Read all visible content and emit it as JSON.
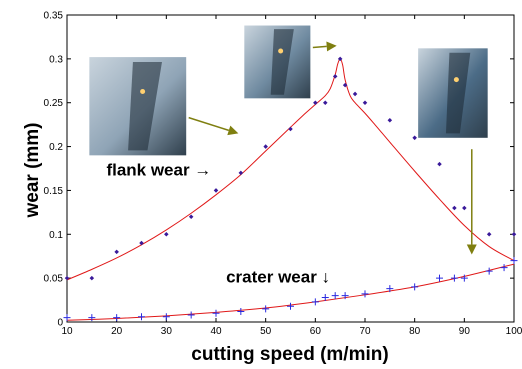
{
  "chart_data": {
    "type": "scatter",
    "xlabel": "cutting speed (m/min)",
    "ylabel": "wear (mm)",
    "xlim": [
      10,
      100
    ],
    "ylim": [
      0,
      0.35
    ],
    "xticks": [
      10,
      20,
      30,
      40,
      50,
      60,
      70,
      80,
      90,
      100
    ],
    "yticks": [
      0,
      0.05,
      0.1,
      0.15,
      0.2,
      0.25,
      0.3,
      0.35
    ],
    "xtick_labels": [
      "10",
      "20",
      "30",
      "40",
      "50",
      "60",
      "70",
      "80",
      "90",
      "100"
    ],
    "ytick_labels": [
      "0",
      "0.05",
      "0.1",
      "0.15",
      "0.2",
      "0.25",
      "0.3",
      "0.35"
    ],
    "grid": false,
    "series": [
      {
        "name": "",
        "marker": "dot",
        "color": "#3a1a9a",
        "x": [
          10,
          15,
          20,
          25,
          30,
          35,
          40,
          45,
          50,
          55,
          60,
          62,
          64,
          65,
          66,
          68,
          70,
          75,
          80,
          85,
          88,
          90,
          95,
          100
        ],
        "y": [
          0.05,
          0.05,
          0.08,
          0.09,
          0.1,
          0.12,
          0.15,
          0.17,
          0.2,
          0.22,
          0.25,
          0.25,
          0.28,
          0.3,
          0.27,
          0.26,
          0.25,
          0.23,
          0.21,
          0.18,
          0.13,
          0.13,
          0.1,
          0.1
        ]
      },
      {
        "name": "",
        "marker": "plus",
        "color": "#2a2ae0",
        "x": [
          10,
          15,
          20,
          25,
          30,
          35,
          40,
          45,
          50,
          55,
          60,
          62,
          64,
          66,
          70,
          75,
          80,
          85,
          88,
          90,
          95,
          98,
          100
        ],
        "y": [
          0.005,
          0.005,
          0.005,
          0.006,
          0.006,
          0.008,
          0.01,
          0.012,
          0.015,
          0.018,
          0.023,
          0.028,
          0.03,
          0.03,
          0.032,
          0.038,
          0.04,
          0.05,
          0.05,
          0.05,
          0.058,
          0.062,
          0.07
        ]
      }
    ],
    "fit_curves": [
      {
        "color": "#e01818",
        "x": [
          10,
          15,
          20,
          25,
          30,
          35,
          40,
          45,
          50,
          55,
          58,
          60,
          62,
          63,
          64,
          64.5,
          65,
          65.5,
          66,
          67,
          68,
          70,
          72,
          75,
          80,
          85,
          90,
          95,
          100
        ],
        "y": [
          0.048,
          0.06,
          0.073,
          0.088,
          0.105,
          0.124,
          0.145,
          0.168,
          0.195,
          0.222,
          0.238,
          0.248,
          0.258,
          0.266,
          0.282,
          0.294,
          0.3,
          0.293,
          0.276,
          0.258,
          0.25,
          0.238,
          0.225,
          0.205,
          0.172,
          0.14,
          0.11,
          0.086,
          0.07
        ]
      },
      {
        "color": "#e01818",
        "x": [
          10,
          20,
          30,
          40,
          50,
          60,
          70,
          80,
          90,
          100
        ],
        "y": [
          0.002,
          0.004,
          0.007,
          0.011,
          0.016,
          0.023,
          0.031,
          0.04,
          0.052,
          0.066
        ]
      }
    ],
    "annotations": [
      {
        "text": "flank wear →",
        "x": 28.5,
        "y": 0.167
      },
      {
        "text": "crater wear ↓",
        "x": 52.5,
        "y": 0.045
      }
    ]
  },
  "photos": [
    {
      "icon": "tool-flank-photo",
      "x0": 14.5,
      "x1": 34,
      "y0": 0.19,
      "y1": 0.302,
      "tint": "#8fa4b6"
    },
    {
      "icon": "tool-tip-photo",
      "x0": 45.7,
      "x1": 59,
      "y0": 0.255,
      "y1": 0.338,
      "tint": "#6f8aa0"
    },
    {
      "icon": "tool-crater-photo",
      "x0": 80.7,
      "x1": 94.7,
      "y0": 0.21,
      "y1": 0.312,
      "tint": "#4c6c87"
    }
  ],
  "arrows": [
    {
      "color": "#7f7f10",
      "from": [
        34.5,
        0.233
      ],
      "to": [
        44.5,
        0.215
      ]
    },
    {
      "color": "#7f7f10",
      "from": [
        59.5,
        0.313
      ],
      "to": [
        64.3,
        0.315
      ]
    },
    {
      "color": "#7f7f10",
      "from": [
        91.5,
        0.197
      ],
      "to": [
        91.5,
        0.077
      ]
    }
  ]
}
